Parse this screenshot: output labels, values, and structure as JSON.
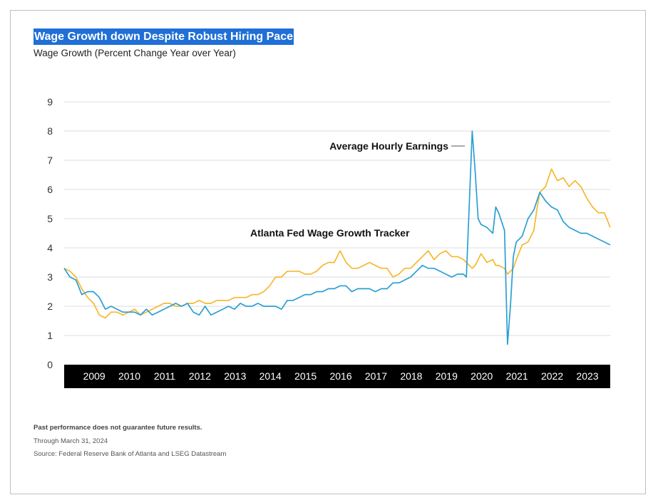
{
  "title": "Wage Growth down Despite Robust Hiring Pace",
  "subtitle": "Wage Growth (Percent Change Year over Year)",
  "footnotes": {
    "disclaimer": "Past performance does not guarantee future results.",
    "through": "Through March 31, 2024",
    "source": "Source: Federal Reserve Bank of Atlanta and LSEG Datastream"
  },
  "colors": {
    "ahe": "#2a9fd6",
    "atl": "#f5b82e",
    "axis_band": "#000000",
    "grid": "#dddddd"
  },
  "chart_data": {
    "type": "line",
    "title": "Wage Growth down Despite Robust Hiring Pace",
    "ylabel": "Wage Growth (Percent Change Year over Year)",
    "ylim": [
      0,
      9
    ],
    "yticks": [
      0,
      1,
      2,
      3,
      4,
      5,
      6,
      7,
      8,
      9
    ],
    "xlim": [
      "2008-09",
      "2024-03"
    ],
    "xticks": [
      "2009",
      "2010",
      "2011",
      "2012",
      "2013",
      "2014",
      "2015",
      "2016",
      "2017",
      "2018",
      "2019",
      "2020",
      "2021",
      "2022",
      "2023"
    ],
    "grid": true,
    "legend": "none",
    "annotations": [
      {
        "text": "Average Hourly Earnings",
        "series": "Average Hourly Earnings",
        "x": "2019-07",
        "y": 7.5
      },
      {
        "text": "Atlanta Fed Wage Growth Tracker",
        "series": "Atlanta Fed Wage Growth Tracker",
        "x": "2016-01",
        "y": 4.5
      }
    ],
    "series": [
      {
        "name": "Average Hourly Earnings",
        "color": "#2a9fd6",
        "points": [
          [
            "2008-09",
            3.3
          ],
          [
            "2008-11",
            3.0
          ],
          [
            "2009-01",
            2.9
          ],
          [
            "2009-03",
            2.4
          ],
          [
            "2009-05",
            2.5
          ],
          [
            "2009-07",
            2.5
          ],
          [
            "2009-09",
            2.3
          ],
          [
            "2009-11",
            1.9
          ],
          [
            "2010-01",
            2.0
          ],
          [
            "2010-03",
            1.9
          ],
          [
            "2010-05",
            1.8
          ],
          [
            "2010-07",
            1.8
          ],
          [
            "2010-09",
            1.8
          ],
          [
            "2010-11",
            1.7
          ],
          [
            "2011-01",
            1.9
          ],
          [
            "2011-03",
            1.7
          ],
          [
            "2011-05",
            1.8
          ],
          [
            "2011-07",
            1.9
          ],
          [
            "2011-09",
            2.0
          ],
          [
            "2011-11",
            2.1
          ],
          [
            "2012-01",
            2.0
          ],
          [
            "2012-03",
            2.1
          ],
          [
            "2012-05",
            1.8
          ],
          [
            "2012-07",
            1.7
          ],
          [
            "2012-09",
            2.0
          ],
          [
            "2012-11",
            1.7
          ],
          [
            "2013-01",
            1.8
          ],
          [
            "2013-03",
            1.9
          ],
          [
            "2013-05",
            2.0
          ],
          [
            "2013-07",
            1.9
          ],
          [
            "2013-09",
            2.1
          ],
          [
            "2013-11",
            2.0
          ],
          [
            "2014-01",
            2.0
          ],
          [
            "2014-03",
            2.1
          ],
          [
            "2014-05",
            2.0
          ],
          [
            "2014-07",
            2.0
          ],
          [
            "2014-09",
            2.0
          ],
          [
            "2014-11",
            1.9
          ],
          [
            "2015-01",
            2.2
          ],
          [
            "2015-03",
            2.2
          ],
          [
            "2015-05",
            2.3
          ],
          [
            "2015-07",
            2.4
          ],
          [
            "2015-09",
            2.4
          ],
          [
            "2015-11",
            2.5
          ],
          [
            "2016-01",
            2.5
          ],
          [
            "2016-03",
            2.6
          ],
          [
            "2016-05",
            2.6
          ],
          [
            "2016-07",
            2.7
          ],
          [
            "2016-09",
            2.7
          ],
          [
            "2016-11",
            2.5
          ],
          [
            "2017-01",
            2.6
          ],
          [
            "2017-03",
            2.6
          ],
          [
            "2017-05",
            2.6
          ],
          [
            "2017-07",
            2.5
          ],
          [
            "2017-09",
            2.6
          ],
          [
            "2017-11",
            2.6
          ],
          [
            "2018-01",
            2.8
          ],
          [
            "2018-03",
            2.8
          ],
          [
            "2018-05",
            2.9
          ],
          [
            "2018-07",
            3.0
          ],
          [
            "2018-09",
            3.2
          ],
          [
            "2018-11",
            3.4
          ],
          [
            "2019-01",
            3.3
          ],
          [
            "2019-03",
            3.3
          ],
          [
            "2019-05",
            3.2
          ],
          [
            "2019-07",
            3.1
          ],
          [
            "2019-09",
            3.0
          ],
          [
            "2019-11",
            3.1
          ],
          [
            "2020-01",
            3.1
          ],
          [
            "2020-02",
            3.0
          ],
          [
            "2020-04",
            8.0
          ],
          [
            "2020-05",
            6.6
          ],
          [
            "2020-06",
            5.0
          ],
          [
            "2020-07",
            4.8
          ],
          [
            "2020-09",
            4.7
          ],
          [
            "2020-11",
            4.5
          ],
          [
            "2020-12",
            5.4
          ],
          [
            "2021-01",
            5.2
          ],
          [
            "2021-03",
            4.6
          ],
          [
            "2021-04",
            0.7
          ],
          [
            "2021-05",
            2.0
          ],
          [
            "2021-06",
            3.7
          ],
          [
            "2021-07",
            4.2
          ],
          [
            "2021-09",
            4.4
          ],
          [
            "2021-11",
            5.0
          ],
          [
            "2022-01",
            5.3
          ],
          [
            "2022-02",
            5.6
          ],
          [
            "2022-03",
            5.9
          ],
          [
            "2022-05",
            5.6
          ],
          [
            "2022-07",
            5.4
          ],
          [
            "2022-09",
            5.3
          ],
          [
            "2022-11",
            4.9
          ],
          [
            "2023-01",
            4.7
          ],
          [
            "2023-03",
            4.6
          ],
          [
            "2023-05",
            4.5
          ],
          [
            "2023-07",
            4.5
          ],
          [
            "2023-09",
            4.4
          ],
          [
            "2023-11",
            4.3
          ],
          [
            "2024-01",
            4.2
          ],
          [
            "2024-03",
            4.1
          ]
        ]
      },
      {
        "name": "Atlanta Fed Wage Growth Tracker",
        "color": "#f5b82e",
        "points": [
          [
            "2008-09",
            3.3
          ],
          [
            "2008-11",
            3.2
          ],
          [
            "2009-01",
            3.0
          ],
          [
            "2009-03",
            2.6
          ],
          [
            "2009-05",
            2.3
          ],
          [
            "2009-07",
            2.1
          ],
          [
            "2009-09",
            1.7
          ],
          [
            "2009-11",
            1.6
          ],
          [
            "2010-01",
            1.8
          ],
          [
            "2010-03",
            1.8
          ],
          [
            "2010-05",
            1.7
          ],
          [
            "2010-07",
            1.8
          ],
          [
            "2010-09",
            1.9
          ],
          [
            "2010-11",
            1.7
          ],
          [
            "2011-01",
            1.8
          ],
          [
            "2011-03",
            1.9
          ],
          [
            "2011-05",
            2.0
          ],
          [
            "2011-07",
            2.1
          ],
          [
            "2011-09",
            2.1
          ],
          [
            "2011-11",
            2.0
          ],
          [
            "2012-01",
            2.0
          ],
          [
            "2012-03",
            2.1
          ],
          [
            "2012-05",
            2.1
          ],
          [
            "2012-07",
            2.2
          ],
          [
            "2012-09",
            2.1
          ],
          [
            "2012-11",
            2.1
          ],
          [
            "2013-01",
            2.2
          ],
          [
            "2013-03",
            2.2
          ],
          [
            "2013-05",
            2.2
          ],
          [
            "2013-07",
            2.3
          ],
          [
            "2013-09",
            2.3
          ],
          [
            "2013-11",
            2.3
          ],
          [
            "2014-01",
            2.4
          ],
          [
            "2014-03",
            2.4
          ],
          [
            "2014-05",
            2.5
          ],
          [
            "2014-07",
            2.7
          ],
          [
            "2014-09",
            3.0
          ],
          [
            "2014-11",
            3.0
          ],
          [
            "2015-01",
            3.2
          ],
          [
            "2015-03",
            3.2
          ],
          [
            "2015-05",
            3.2
          ],
          [
            "2015-07",
            3.1
          ],
          [
            "2015-09",
            3.1
          ],
          [
            "2015-11",
            3.2
          ],
          [
            "2016-01",
            3.4
          ],
          [
            "2016-03",
            3.5
          ],
          [
            "2016-05",
            3.5
          ],
          [
            "2016-07",
            3.9
          ],
          [
            "2016-09",
            3.5
          ],
          [
            "2016-11",
            3.3
          ],
          [
            "2017-01",
            3.3
          ],
          [
            "2017-03",
            3.4
          ],
          [
            "2017-05",
            3.5
          ],
          [
            "2017-07",
            3.4
          ],
          [
            "2017-09",
            3.3
          ],
          [
            "2017-11",
            3.3
          ],
          [
            "2018-01",
            3.0
          ],
          [
            "2018-03",
            3.1
          ],
          [
            "2018-05",
            3.3
          ],
          [
            "2018-07",
            3.3
          ],
          [
            "2018-09",
            3.5
          ],
          [
            "2018-11",
            3.7
          ],
          [
            "2019-01",
            3.9
          ],
          [
            "2019-03",
            3.6
          ],
          [
            "2019-05",
            3.8
          ],
          [
            "2019-07",
            3.9
          ],
          [
            "2019-09",
            3.7
          ],
          [
            "2019-11",
            3.7
          ],
          [
            "2020-01",
            3.6
          ],
          [
            "2020-02",
            3.5
          ],
          [
            "2020-04",
            3.3
          ],
          [
            "2020-05",
            3.4
          ],
          [
            "2020-06",
            3.6
          ],
          [
            "2020-07",
            3.8
          ],
          [
            "2020-09",
            3.5
          ],
          [
            "2020-11",
            3.6
          ],
          [
            "2020-12",
            3.4
          ],
          [
            "2021-01",
            3.4
          ],
          [
            "2021-03",
            3.3
          ],
          [
            "2021-04",
            3.1
          ],
          [
            "2021-05",
            3.2
          ],
          [
            "2021-06",
            3.3
          ],
          [
            "2021-07",
            3.6
          ],
          [
            "2021-09",
            4.1
          ],
          [
            "2021-11",
            4.2
          ],
          [
            "2022-01",
            4.6
          ],
          [
            "2022-02",
            5.3
          ],
          [
            "2022-03",
            5.9
          ],
          [
            "2022-05",
            6.1
          ],
          [
            "2022-07",
            6.7
          ],
          [
            "2022-09",
            6.3
          ],
          [
            "2022-11",
            6.4
          ],
          [
            "2023-01",
            6.1
          ],
          [
            "2023-03",
            6.3
          ],
          [
            "2023-05",
            6.1
          ],
          [
            "2023-07",
            5.7
          ],
          [
            "2023-09",
            5.4
          ],
          [
            "2023-11",
            5.2
          ],
          [
            "2024-01",
            5.2
          ],
          [
            "2024-03",
            4.7
          ]
        ]
      }
    ]
  }
}
